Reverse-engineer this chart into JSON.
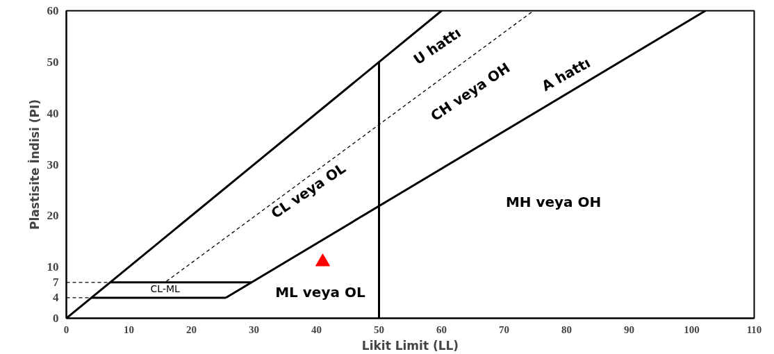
{
  "chart_data": {
    "type": "line",
    "xlabel": "Likit Limit (LL)",
    "ylabel": "Plastisite İndisi (PI)",
    "xlim": [
      0,
      110
    ],
    "ylim": [
      0,
      60
    ],
    "xticks": [
      0,
      10,
      20,
      30,
      40,
      50,
      60,
      70,
      80,
      90,
      100,
      110
    ],
    "yticks": [
      0,
      4,
      7,
      10,
      20,
      30,
      40,
      50,
      60
    ],
    "grid": false,
    "series": [
      {
        "x": [
          0,
          60
        ],
        "values": [
          0,
          60
        ],
        "color": "#000000",
        "line_style": "solid"
      },
      {
        "x": [
          16,
          74.7
        ],
        "values": [
          7.2,
          60
        ],
        "color": "#000000",
        "line_style": "dashed"
      },
      {
        "x": [
          25.5,
          102.2
        ],
        "values": [
          4,
          60
        ],
        "color": "#000000",
        "line_style": "solid"
      },
      {
        "x": [
          50,
          50
        ],
        "values": [
          0,
          50
        ],
        "color": "#000000",
        "line_style": "solid"
      },
      {
        "x": [
          7,
          29.6
        ],
        "values": [
          7,
          7
        ],
        "color": "#000000",
        "line_style": "solid"
      },
      {
        "x": [
          4,
          25.5
        ],
        "values": [
          4,
          4
        ],
        "color": "#000000",
        "line_style": "solid"
      },
      {
        "x": [
          0,
          7
        ],
        "values": [
          7,
          7
        ],
        "color": "#000000",
        "line_style": "dashed"
      },
      {
        "x": [
          0,
          4
        ],
        "values": [
          4,
          4
        ],
        "color": "#000000",
        "line_style": "dashed"
      },
      {
        "type": "scatter",
        "marker": "triangle",
        "x": [
          41
        ],
        "values": [
          11
        ],
        "color": "#ff0000"
      }
    ],
    "annotations": [
      "U hattı",
      "CH veya OH",
      "A hattı",
      "CL veya OL",
      "MH veya OH",
      "ML veya OL",
      "CL-ML"
    ]
  }
}
